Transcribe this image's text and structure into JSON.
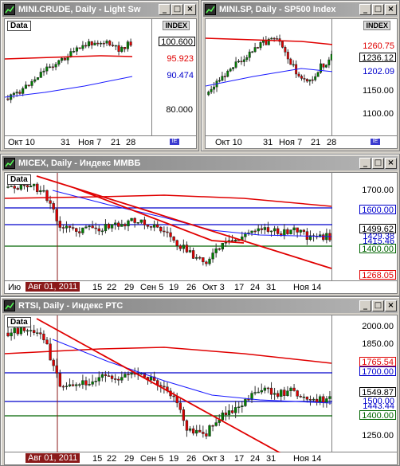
{
  "colors": {
    "candle_up": "#008000",
    "candle_down": "#e00000",
    "ma_long": "#e00000",
    "ma_mid": "#1a1aff",
    "support": "#006400",
    "level": "#0000cc",
    "trend": "#e00000"
  },
  "window1": {
    "title": "MINI.CRUDE, Daily - Light Sw",
    "data_label": "Data",
    "index_label": "INDEX",
    "price_tags": [
      "100.600",
      "95.923",
      "90.474"
    ],
    "y_labels": [
      "80.000"
    ],
    "x_labels": [
      "Окт 10",
      "31",
      "Ноя 7",
      "21",
      "28"
    ]
  },
  "window2": {
    "title": "MINI.SP, Daily - SP500 Index",
    "index_label": "INDEX",
    "price_tags": [
      "1260.75",
      "1236.12",
      "1202.09"
    ],
    "y_labels": [
      "1150.00",
      "1100.00"
    ],
    "x_labels": [
      "Окт 10",
      "31",
      "Ноя 7",
      "21",
      "28"
    ]
  },
  "window3": {
    "title": "MICEX, Daily - Индекс ММВБ",
    "data_label": "Data",
    "price_tags": [
      "1600.00",
      "1499.62",
      "1429.38",
      "1415.46",
      "1400.00",
      "1268.05"
    ],
    "y_labels": [
      "1700.00"
    ],
    "x_labels": [
      "Ию",
      "Авг 01, 2011",
      "15",
      "22",
      "29",
      "Сен 5",
      "19",
      "26",
      "Окт 3",
      "17",
      "24",
      "31",
      "Ноя 14"
    ]
  },
  "window4": {
    "title": "RTSI, Daily - Индекс РТС",
    "data_label": "Data",
    "price_tags": [
      "1765.54",
      "1700.00",
      "1549.87",
      "1500.00",
      "1443.44",
      "1400.00"
    ],
    "y_labels": [
      "2000.00",
      "1850.00",
      "1250.00"
    ],
    "x_labels": [
      "",
      "Авг 01, 2011",
      "15",
      "22",
      "29",
      "Сен 5",
      "19",
      "26",
      "Окт 3",
      "17",
      "24",
      "31",
      "Ноя 14"
    ]
  },
  "buttons": {
    "minimize": "_",
    "maximize": "□",
    "close": "×"
  }
}
